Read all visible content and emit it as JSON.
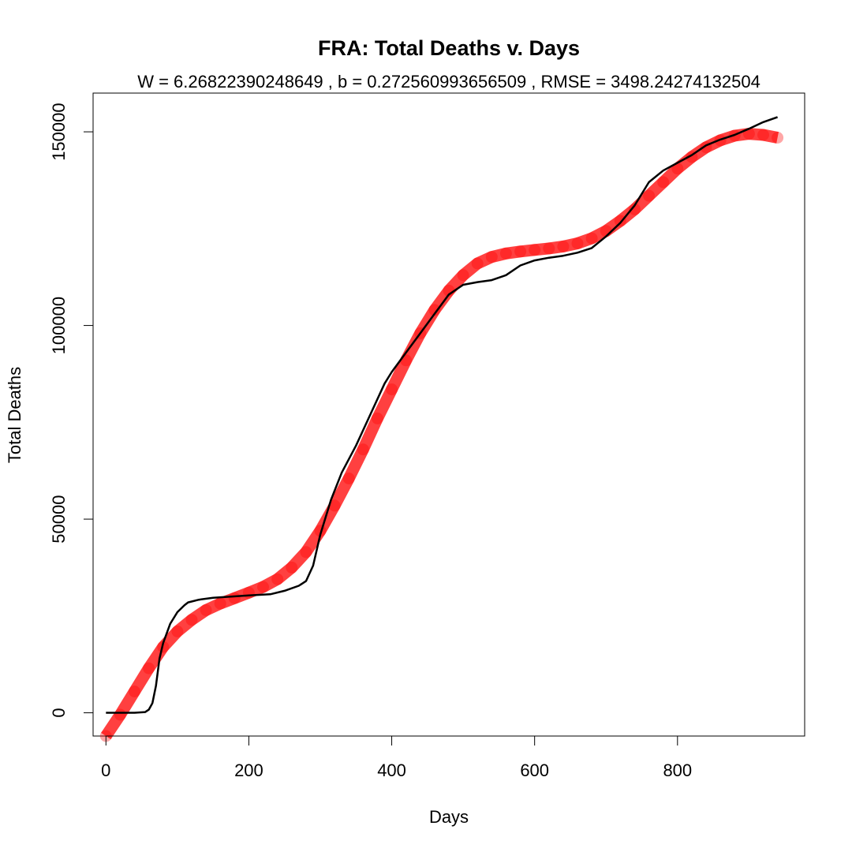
{
  "chart_data": {
    "type": "line",
    "title": "FRA: Total Deaths v. Days",
    "subtitle": "W = 6.26822390248649 , b = 0.272560993656509 , RMSE = 3498.24274132504",
    "xlabel": "Days",
    "ylabel": "Total Deaths",
    "xlim": [
      -18,
      978
    ],
    "ylim": [
      -6000,
      160000
    ],
    "xticks": [
      0,
      200,
      400,
      600,
      800
    ],
    "yticks": [
      0,
      50000,
      100000,
      150000
    ],
    "xtick_labels": [
      "0",
      "200",
      "400",
      "600",
      "800"
    ],
    "ytick_labels": [
      "0",
      "50000",
      "100000",
      "150000"
    ],
    "grid": false,
    "series": [
      {
        "role": "observed",
        "color": "#000000",
        "x": [
          0,
          20,
          40,
          55,
          60,
          65,
          70,
          75,
          80,
          90,
          100,
          110,
          115,
          130,
          150,
          175,
          200,
          230,
          250,
          270,
          280,
          290,
          300,
          315,
          330,
          350,
          370,
          390,
          400,
          420,
          440,
          460,
          480,
          500,
          520,
          540,
          560,
          580,
          600,
          620,
          640,
          660,
          680,
          700,
          720,
          740,
          760,
          780,
          800,
          820,
          840,
          860,
          880,
          900,
          920,
          940
        ],
        "y": [
          0,
          0,
          0,
          200,
          800,
          2500,
          7000,
          14000,
          18000,
          23000,
          26000,
          27800,
          28500,
          29200,
          29700,
          30000,
          30300,
          30600,
          31500,
          32800,
          34000,
          38000,
          46000,
          55000,
          62000,
          69000,
          77000,
          85000,
          88000,
          93000,
          98000,
          103000,
          108000,
          110500,
          111200,
          111700,
          113000,
          115500,
          116800,
          117500,
          118000,
          118800,
          120000,
          123000,
          126500,
          131000,
          137000,
          140000,
          142000,
          144000,
          146500,
          148000,
          149200,
          150800,
          152500,
          153800
        ]
      },
      {
        "role": "fitted",
        "color": "#ff0000",
        "x": [
          0,
          20,
          40,
          60,
          80,
          100,
          120,
          140,
          160,
          180,
          200,
          220,
          240,
          260,
          280,
          300,
          320,
          340,
          360,
          380,
          400,
          420,
          440,
          460,
          480,
          500,
          520,
          540,
          560,
          580,
          600,
          620,
          640,
          660,
          680,
          700,
          720,
          740,
          760,
          780,
          800,
          820,
          840,
          860,
          880,
          900,
          920,
          940
        ],
        "y": [
          -6000,
          -500,
          5500,
          11500,
          17000,
          21000,
          24000,
          26500,
          28200,
          29600,
          31000,
          32500,
          34500,
          37500,
          41500,
          47000,
          53500,
          60500,
          68000,
          76000,
          83500,
          91000,
          98000,
          104000,
          109000,
          113000,
          116000,
          117700,
          118600,
          119100,
          119500,
          119900,
          120400,
          121200,
          122500,
          124400,
          127000,
          130000,
          133500,
          137000,
          140500,
          143500,
          146000,
          147800,
          149000,
          149500,
          149200,
          148500
        ]
      }
    ]
  }
}
